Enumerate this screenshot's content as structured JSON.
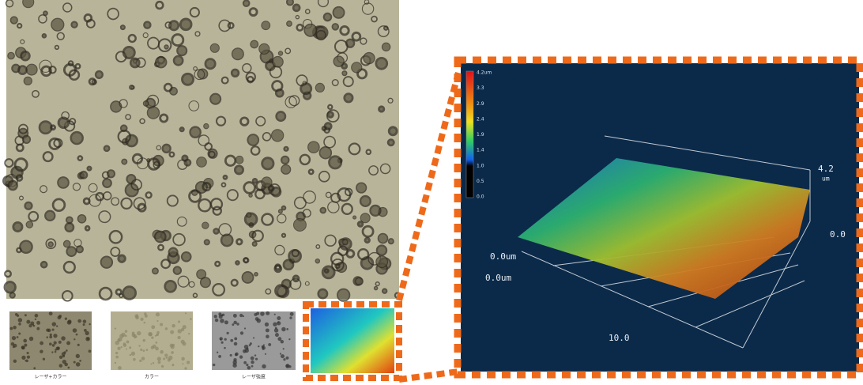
{
  "thumbnails": {
    "captions": [
      "レーザ+カラー",
      "カラー",
      "レーザ強度"
    ]
  },
  "surface_view": {
    "colorbar_labels": [
      "4.2um",
      "3.3",
      "2.9",
      "2.4",
      "1.9",
      "1.4",
      "1.0",
      "0.5",
      "0.0"
    ],
    "z_max_label": "4.2",
    "z_unit_label": "um",
    "z_min_label": "0.0",
    "y_origin_label": "0.0um",
    "x_origin_label": "0.0um",
    "x_end_label": "10.0"
  }
}
